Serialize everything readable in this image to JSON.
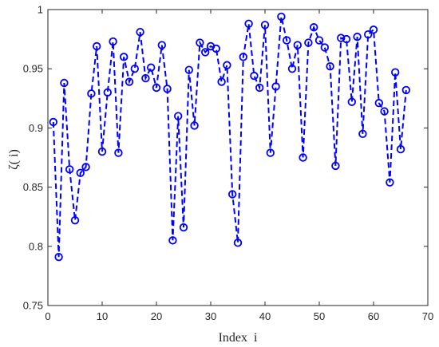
{
  "chart_data": {
    "type": "line",
    "xlabel": "Index  i",
    "ylabel": "ζ( i)",
    "xlim": [
      0,
      70
    ],
    "ylim": [
      0.75,
      1.0
    ],
    "xticks": [
      0,
      10,
      20,
      30,
      40,
      50,
      60,
      70
    ],
    "yticks": [
      0.75,
      0.8,
      0.85,
      0.9,
      0.95,
      1.0
    ],
    "ytick_labels": [
      "0.75",
      "0.8",
      "0.85",
      "0.9",
      "0.95",
      "1"
    ],
    "grid": false,
    "line_style": "dashed",
    "marker": "circle",
    "color": "#0000ff",
    "x": [
      1,
      2,
      3,
      4,
      5,
      6,
      7,
      8,
      9,
      10,
      11,
      12,
      13,
      14,
      15,
      16,
      17,
      18,
      19,
      20,
      21,
      22,
      23,
      24,
      25,
      26,
      27,
      28,
      29,
      30,
      31,
      32,
      33,
      34,
      35,
      36,
      37,
      38,
      39,
      40,
      41,
      42,
      43,
      44,
      45,
      46,
      47,
      48,
      49,
      50,
      51,
      52,
      53,
      54,
      55,
      56,
      57,
      58,
      59,
      60,
      61,
      62,
      63,
      64,
      65,
      66
    ],
    "y": [
      0.905,
      0.791,
      0.938,
      0.865,
      0.822,
      0.862,
      0.867,
      0.929,
      0.969,
      0.88,
      0.93,
      0.973,
      0.879,
      0.96,
      0.939,
      0.95,
      0.981,
      0.942,
      0.951,
      0.934,
      0.97,
      0.933,
      0.805,
      0.91,
      0.816,
      0.949,
      0.902,
      0.972,
      0.964,
      0.969,
      0.967,
      0.939,
      0.953,
      0.844,
      0.803,
      0.96,
      0.988,
      0.944,
      0.934,
      0.987,
      0.879,
      0.935,
      0.994,
      0.974,
      0.95,
      0.97,
      0.875,
      0.972,
      0.985,
      0.974,
      0.968,
      0.952,
      0.868,
      0.976,
      0.975,
      0.922,
      0.977,
      0.895,
      0.979,
      0.983,
      0.921,
      0.914,
      0.854,
      0.947,
      0.882,
      0.932
    ]
  }
}
